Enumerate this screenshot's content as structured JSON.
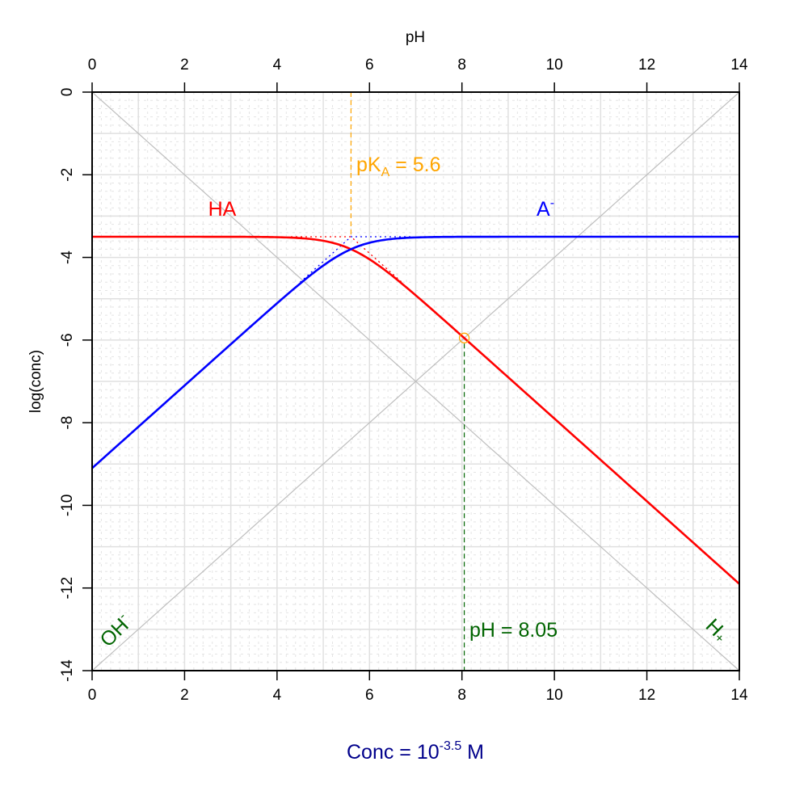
{
  "chart_data": {
    "type": "line",
    "top_axis_label": "pH",
    "ylabel": "log(conc)",
    "xlabel_parts": {
      "prefix": "Conc = 10",
      "exponent": "-3.5",
      "suffix": " M"
    },
    "xlim": [
      0,
      14
    ],
    "ylim": [
      -14,
      0
    ],
    "x_ticks": [
      "0",
      "2",
      "4",
      "6",
      "8",
      "10",
      "12",
      "14"
    ],
    "y_ticks": [
      "0",
      "-2",
      "-4",
      "-6",
      "-8",
      "-10",
      "-12",
      "-14"
    ],
    "grid": true,
    "log_conc_total": -3.5,
    "pKa": 5.6,
    "equivalence_pH": 8.05,
    "equivalence_log_conc": -5.95,
    "series": [
      {
        "name": "HA",
        "color": "#ff0000"
      },
      {
        "name": "A-",
        "color": "#0000ff"
      },
      {
        "name": "H+",
        "color": "#bebebe"
      },
      {
        "name": "OH-",
        "color": "#bebebe"
      }
    ],
    "annotations": {
      "pka_label": {
        "prefix": "pK",
        "sub": "A",
        "suffix": " = 5.6",
        "color": "#ffa500"
      },
      "ph_label": {
        "text": "pH = 8.05",
        "color": "#006400"
      },
      "ha_label": "HA",
      "a_label": {
        "base": "A",
        "sup": "-"
      },
      "oh_label": {
        "base": "OH",
        "sup": "-"
      },
      "h_label": {
        "base": "H",
        "sup": "+"
      },
      "xlabel_color": "#00008b",
      "species_label_color": "#006400"
    }
  }
}
